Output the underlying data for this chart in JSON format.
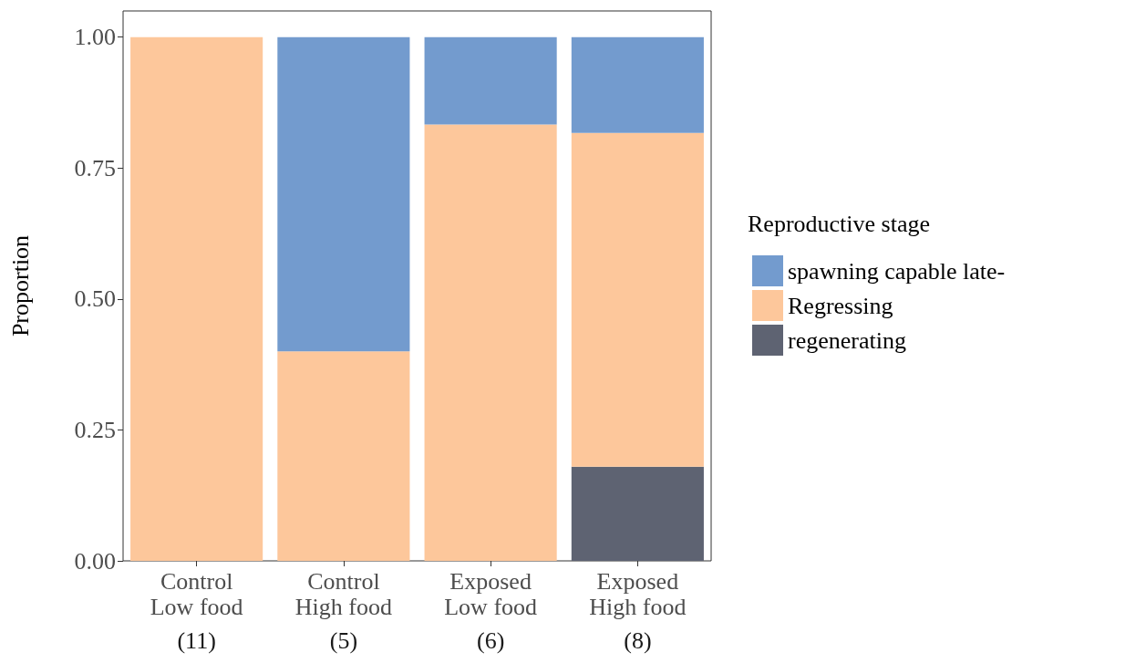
{
  "chart_data": {
    "type": "bar",
    "stacked": true,
    "ylabel": "Proportion",
    "legend_title": "Reproductive stage",
    "legend": "right",
    "categories": [
      "Control\nLow food\n(11)",
      "Control\nHigh food\n(5)",
      "Exposed\nLow food\n(6)",
      "Exposed\nHigh food\n(8)"
    ],
    "series": [
      {
        "name": "regenerating",
        "color": "#5e6372",
        "values": [
          0,
          0,
          0,
          0.18
        ]
      },
      {
        "name": "Regressing",
        "color": "#fdc79b",
        "values": [
          1,
          0.4,
          0.833,
          0.637
        ]
      },
      {
        "name": "spawning capable late-",
        "color": "#739bce",
        "values": [
          0,
          0.6,
          0.167,
          0.183
        ]
      }
    ],
    "ylim": [
      0,
      1.05
    ],
    "yticks": [
      {
        "value": 0,
        "label": "0.00"
      },
      {
        "value": 0.25,
        "label": "0.25"
      },
      {
        "value": 0.5,
        "label": "0.50"
      },
      {
        "value": 0.75,
        "label": "0.75"
      },
      {
        "value": 1,
        "label": "1.00"
      }
    ],
    "grid": false
  }
}
